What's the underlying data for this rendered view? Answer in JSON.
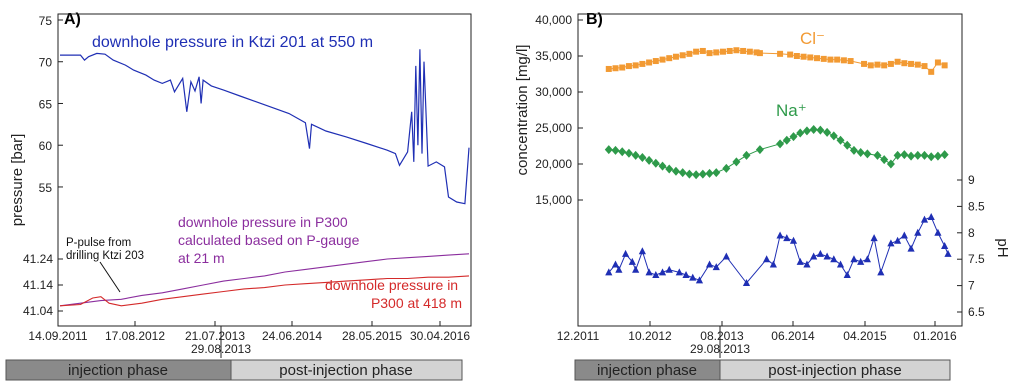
{
  "chart_data": [
    {
      "type": "line",
      "panel_label": "A)",
      "ylabel": "pressure [bar]",
      "x_tick_labels": [
        "14.09.2011",
        "17.08.2012",
        "21.07.2013",
        "24.06.2014",
        "28.05.2015",
        "30.04.2016"
      ],
      "upper_y_ticks": [
        "55",
        "60",
        "65",
        "70",
        "75"
      ],
      "lower_y_ticks": [
        "41.04",
        "41.14",
        "41.24"
      ],
      "upper_ylim": [
        52,
        75
      ],
      "lower_ylim": [
        41.04,
        41.29
      ],
      "series": [
        {
          "name": "downhole pressure in Ktzi 201 at 550 m",
          "color": "#1f2fb4",
          "points": [
            [
              0.0,
              70.8
            ],
            [
              0.05,
              70.8
            ],
            [
              0.06,
              70.2
            ],
            [
              0.07,
              70.6
            ],
            [
              0.09,
              71.0
            ],
            [
              0.11,
              70.9
            ],
            [
              0.13,
              70.2
            ],
            [
              0.16,
              69.6
            ],
            [
              0.18,
              69.0
            ],
            [
              0.21,
              68.4
            ],
            [
              0.23,
              67.8
            ],
            [
              0.25,
              67.4
            ],
            [
              0.27,
              67.8
            ],
            [
              0.28,
              66.4
            ],
            [
              0.3,
              68.0
            ],
            [
              0.31,
              64.0
            ],
            [
              0.32,
              67.6
            ],
            [
              0.33,
              66.5
            ],
            [
              0.34,
              68.2
            ],
            [
              0.345,
              65.0
            ],
            [
              0.35,
              67.8
            ],
            [
              0.37,
              67.1
            ],
            [
              0.4,
              66.6
            ],
            [
              0.44,
              65.9
            ],
            [
              0.48,
              65.2
            ],
            [
              0.52,
              64.5
            ],
            [
              0.56,
              63.8
            ],
            [
              0.6,
              62.7
            ],
            [
              0.61,
              59.6
            ],
            [
              0.615,
              62.5
            ],
            [
              0.65,
              61.7
            ],
            [
              0.7,
              61.0
            ],
            [
              0.75,
              60.2
            ],
            [
              0.8,
              59.4
            ],
            [
              0.82,
              59.0
            ],
            [
              0.83,
              57.6
            ],
            [
              0.84,
              58.4
            ],
            [
              0.85,
              59.2
            ],
            [
              0.86,
              64.0
            ],
            [
              0.865,
              58.0
            ],
            [
              0.87,
              69.5
            ],
            [
              0.875,
              60.0
            ],
            [
              0.88,
              71.5
            ],
            [
              0.885,
              59.0
            ],
            [
              0.89,
              70.0
            ],
            [
              0.9,
              57.5
            ],
            [
              0.92,
              58.0
            ],
            [
              0.94,
              57.4
            ],
            [
              0.95,
              53.8
            ],
            [
              0.97,
              53.2
            ],
            [
              0.99,
              53.0
            ],
            [
              1.0,
              59.7
            ]
          ]
        },
        {
          "name": "downhole pressure in P300 calculated based on P-gauge at 21 m",
          "color": "#8b2e9e",
          "points": [
            [
              0.0,
              41.06
            ],
            [
              0.05,
              41.07
            ],
            [
              0.1,
              41.08
            ],
            [
              0.15,
              41.085
            ],
            [
              0.2,
              41.1
            ],
            [
              0.25,
              41.11
            ],
            [
              0.3,
              41.125
            ],
            [
              0.35,
              41.14
            ],
            [
              0.4,
              41.155
            ],
            [
              0.45,
              41.165
            ],
            [
              0.5,
              41.175
            ],
            [
              0.55,
              41.19
            ],
            [
              0.6,
              41.2
            ],
            [
              0.65,
              41.21
            ],
            [
              0.7,
              41.22
            ],
            [
              0.75,
              41.23
            ],
            [
              0.8,
              41.24
            ],
            [
              0.85,
              41.245
            ],
            [
              0.9,
              41.25
            ],
            [
              0.95,
              41.255
            ],
            [
              1.0,
              41.26
            ]
          ]
        },
        {
          "name": "downhole pressure in P300 at 418 m",
          "color": "#d42a2a",
          "points": [
            [
              0.0,
              41.06
            ],
            [
              0.05,
              41.065
            ],
            [
              0.08,
              41.09
            ],
            [
              0.1,
              41.095
            ],
            [
              0.12,
              41.07
            ],
            [
              0.15,
              41.06
            ],
            [
              0.2,
              41.07
            ],
            [
              0.25,
              41.085
            ],
            [
              0.3,
              41.095
            ],
            [
              0.35,
              41.105
            ],
            [
              0.4,
              41.115
            ],
            [
              0.45,
              41.125
            ],
            [
              0.5,
              41.13
            ],
            [
              0.55,
              41.14
            ],
            [
              0.6,
              41.145
            ],
            [
              0.65,
              41.15
            ],
            [
              0.7,
              41.155
            ],
            [
              0.75,
              41.16
            ],
            [
              0.8,
              41.165
            ],
            [
              0.85,
              41.165
            ],
            [
              0.9,
              41.17
            ],
            [
              0.95,
              41.17
            ],
            [
              1.0,
              41.175
            ]
          ]
        }
      ],
      "annotation": "P-pulse from drilling Ktzi 203",
      "date_marker": "29.08.2013",
      "phases": [
        "injection phase",
        "post-injection phase"
      ]
    },
    {
      "type": "scatter",
      "panel_label": "B)",
      "ylabel_left": "concentration [mg/l]",
      "ylabel_right": "pH",
      "x_tick_labels": [
        "12.2011",
        "10.2012",
        "08.2013",
        "06.2014",
        "04.2015",
        "01.2016"
      ],
      "left_y_ticks": [
        "15,000",
        "20,000",
        "25,000",
        "30,000",
        "35,000",
        "40,000"
      ],
      "right_y_ticks": [
        "6.5",
        "7",
        "7.5",
        "8",
        "8.5",
        "9"
      ],
      "left_ylim": [
        15000,
        40000
      ],
      "right_ylim": [
        6.5,
        9
      ],
      "series": [
        {
          "name": "Cl⁻",
          "color": "#f29a33",
          "points": [
            [
              0.05,
              33200
            ],
            [
              0.07,
              33300
            ],
            [
              0.09,
              33400
            ],
            [
              0.11,
              33600
            ],
            [
              0.13,
              33700
            ],
            [
              0.15,
              33900
            ],
            [
              0.17,
              34100
            ],
            [
              0.19,
              34300
            ],
            [
              0.21,
              34500
            ],
            [
              0.23,
              34700
            ],
            [
              0.25,
              34900
            ],
            [
              0.27,
              35100
            ],
            [
              0.29,
              35300
            ],
            [
              0.31,
              35600
            ],
            [
              0.33,
              35700
            ],
            [
              0.35,
              35400
            ],
            [
              0.37,
              35500
            ],
            [
              0.39,
              35600
            ],
            [
              0.41,
              35700
            ],
            [
              0.43,
              35800
            ],
            [
              0.45,
              35700
            ],
            [
              0.47,
              35600
            ],
            [
              0.49,
              35500
            ],
            [
              0.5,
              35400
            ],
            [
              0.56,
              35300
            ],
            [
              0.59,
              35200
            ],
            [
              0.61,
              35000
            ],
            [
              0.63,
              34900
            ],
            [
              0.65,
              34800
            ],
            [
              0.67,
              34700
            ],
            [
              0.69,
              34600
            ],
            [
              0.71,
              34500
            ],
            [
              0.73,
              34500
            ],
            [
              0.75,
              34400
            ],
            [
              0.77,
              34300
            ],
            [
              0.81,
              33900
            ],
            [
              0.83,
              33700
            ],
            [
              0.85,
              33800
            ],
            [
              0.87,
              33700
            ],
            [
              0.89,
              33900
            ],
            [
              0.91,
              34200
            ],
            [
              0.93,
              34000
            ],
            [
              0.95,
              33900
            ],
            [
              0.97,
              33800
            ],
            [
              0.99,
              33600
            ],
            [
              1.01,
              32800
            ],
            [
              1.03,
              34100
            ],
            [
              1.05,
              33700
            ]
          ]
        },
        {
          "name": "Na⁺",
          "color": "#2e9a4a",
          "points": [
            [
              0.05,
              22000
            ],
            [
              0.07,
              21900
            ],
            [
              0.09,
              21700
            ],
            [
              0.11,
              21500
            ],
            [
              0.13,
              21200
            ],
            [
              0.15,
              20900
            ],
            [
              0.17,
              20500
            ],
            [
              0.19,
              20100
            ],
            [
              0.21,
              19700
            ],
            [
              0.23,
              19300
            ],
            [
              0.25,
              19000
            ],
            [
              0.27,
              18800
            ],
            [
              0.29,
              18600
            ],
            [
              0.31,
              18500
            ],
            [
              0.33,
              18600
            ],
            [
              0.35,
              18700
            ],
            [
              0.37,
              18800
            ],
            [
              0.4,
              19400
            ],
            [
              0.43,
              20300
            ],
            [
              0.46,
              21200
            ],
            [
              0.5,
              22000
            ],
            [
              0.56,
              22800
            ],
            [
              0.58,
              23300
            ],
            [
              0.6,
              23800
            ],
            [
              0.62,
              24300
            ],
            [
              0.64,
              24600
            ],
            [
              0.66,
              24800
            ],
            [
              0.68,
              24700
            ],
            [
              0.7,
              24400
            ],
            [
              0.72,
              23900
            ],
            [
              0.74,
              23300
            ],
            [
              0.76,
              22600
            ],
            [
              0.78,
              21900
            ],
            [
              0.8,
              21600
            ],
            [
              0.82,
              21400
            ],
            [
              0.85,
              21200
            ],
            [
              0.87,
              20600
            ],
            [
              0.89,
              20000
            ],
            [
              0.91,
              21200
            ],
            [
              0.93,
              21300
            ],
            [
              0.95,
              21100
            ],
            [
              0.97,
              21200
            ],
            [
              0.99,
              21200
            ],
            [
              1.01,
              21000
            ],
            [
              1.03,
              21100
            ],
            [
              1.05,
              21300
            ]
          ]
        },
        {
          "name": "pH",
          "color": "#1f2fb4",
          "points": [
            [
              0.05,
              7.25
            ],
            [
              0.07,
              7.4
            ],
            [
              0.08,
              7.3
            ],
            [
              0.1,
              7.6
            ],
            [
              0.12,
              7.45
            ],
            [
              0.13,
              7.3
            ],
            [
              0.15,
              7.65
            ],
            [
              0.17,
              7.25
            ],
            [
              0.19,
              7.2
            ],
            [
              0.21,
              7.25
            ],
            [
              0.23,
              7.3
            ],
            [
              0.26,
              7.25
            ],
            [
              0.28,
              7.2
            ],
            [
              0.3,
              7.15
            ],
            [
              0.32,
              7.1
            ],
            [
              0.35,
              7.4
            ],
            [
              0.37,
              7.35
            ],
            [
              0.4,
              7.55
            ],
            [
              0.46,
              7.05
            ],
            [
              0.52,
              7.5
            ],
            [
              0.54,
              7.4
            ],
            [
              0.56,
              7.95
            ],
            [
              0.58,
              7.9
            ],
            [
              0.6,
              7.85
            ],
            [
              0.62,
              7.45
            ],
            [
              0.64,
              7.4
            ],
            [
              0.66,
              7.55
            ],
            [
              0.68,
              7.6
            ],
            [
              0.7,
              7.55
            ],
            [
              0.72,
              7.5
            ],
            [
              0.74,
              7.4
            ],
            [
              0.76,
              7.2
            ],
            [
              0.78,
              7.5
            ],
            [
              0.8,
              7.45
            ],
            [
              0.82,
              7.5
            ],
            [
              0.84,
              7.9
            ],
            [
              0.86,
              7.25
            ],
            [
              0.89,
              7.8
            ],
            [
              0.91,
              7.85
            ],
            [
              0.93,
              7.95
            ],
            [
              0.95,
              7.7
            ],
            [
              0.97,
              8.0
            ],
            [
              0.99,
              8.25
            ],
            [
              1.01,
              8.3
            ],
            [
              1.03,
              8.0
            ],
            [
              1.05,
              7.75
            ],
            [
              1.06,
              7.6
            ]
          ]
        }
      ],
      "date_marker": "29.08.2013",
      "phases": [
        "injection phase",
        "post-injection phase"
      ]
    }
  ]
}
